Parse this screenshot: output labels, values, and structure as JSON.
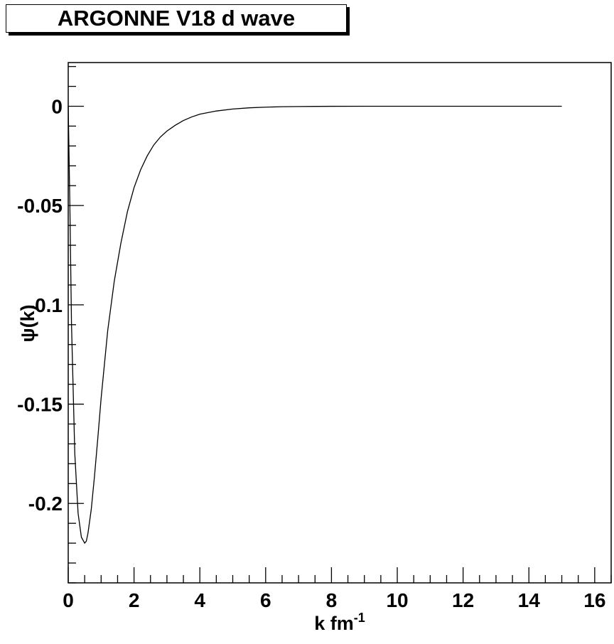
{
  "chart_data": {
    "type": "line",
    "title": "ARGONNE V18 d wave",
    "xlabel": "k fm",
    "xlabel_superscript": "-1",
    "ylabel": "ψ(k)",
    "xlim": [
      0,
      16.5
    ],
    "ylim": [
      -0.24,
      0.022
    ],
    "x_ticks": [
      0,
      2,
      4,
      6,
      8,
      10,
      12,
      14,
      16
    ],
    "x_tick_labels": [
      "0",
      "2",
      "4",
      "6",
      "8",
      "10",
      "12",
      "14",
      "16"
    ],
    "y_ticks": [
      0,
      -0.05,
      -0.1,
      -0.15,
      -0.2
    ],
    "y_tick_labels": [
      "0",
      "-0.05",
      "-0.1",
      "-0.15",
      "-0.2"
    ],
    "grid": false,
    "series": [
      {
        "color": "#000000",
        "x": [
          0,
          0.05,
          0.1,
          0.2,
          0.3,
          0.4,
          0.5,
          0.55,
          0.6,
          0.7,
          0.8,
          0.9,
          1.0,
          1.2,
          1.4,
          1.6,
          1.8,
          2.0,
          2.2,
          2.4,
          2.6,
          2.8,
          3.0,
          3.25,
          3.5,
          3.75,
          4.0,
          4.5,
          5.0,
          5.5,
          6.0,
          6.5,
          7.0,
          7.5,
          8.0,
          9.0,
          10.0,
          11.0,
          12.0,
          13.0,
          14.0,
          15.0
        ],
        "y": [
          0,
          -0.05,
          -0.11,
          -0.175,
          -0.205,
          -0.217,
          -0.22,
          -0.219,
          -0.215,
          -0.203,
          -0.186,
          -0.167,
          -0.147,
          -0.113,
          -0.088,
          -0.069,
          -0.053,
          -0.041,
          -0.032,
          -0.025,
          -0.0195,
          -0.0155,
          -0.0125,
          -0.0096,
          -0.0072,
          -0.0054,
          -0.004,
          -0.0024,
          -0.0014,
          -0.0008,
          -0.00045,
          -0.00025,
          -0.00014,
          -8e-05,
          -4e-05,
          -1e-05,
          0,
          0,
          0,
          0,
          0,
          0
        ]
      }
    ]
  }
}
